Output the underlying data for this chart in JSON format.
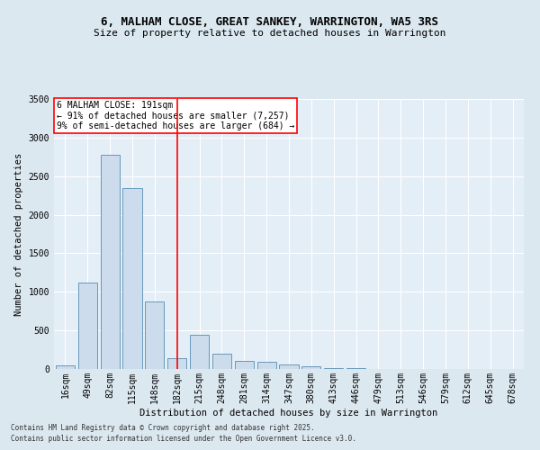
{
  "title_line1": "6, MALHAM CLOSE, GREAT SANKEY, WARRINGTON, WA5 3RS",
  "title_line2": "Size of property relative to detached houses in Warrington",
  "xlabel": "Distribution of detached houses by size in Warrington",
  "ylabel": "Number of detached properties",
  "bar_labels": [
    "16sqm",
    "49sqm",
    "82sqm",
    "115sqm",
    "148sqm",
    "182sqm",
    "215sqm",
    "248sqm",
    "281sqm",
    "314sqm",
    "347sqm",
    "380sqm",
    "413sqm",
    "446sqm",
    "479sqm",
    "513sqm",
    "546sqm",
    "579sqm",
    "612sqm",
    "645sqm",
    "678sqm"
  ],
  "bar_values": [
    50,
    1120,
    2780,
    2340,
    880,
    140,
    445,
    200,
    100,
    90,
    55,
    30,
    15,
    10,
    5,
    2,
    1,
    0,
    0,
    0,
    0
  ],
  "bar_color": "#ccdcec",
  "bar_edge_color": "#6699bb",
  "vline_x": 5,
  "vline_color": "red",
  "annotation_text": "6 MALHAM CLOSE: 191sqm\n← 91% of detached houses are smaller (7,257)\n9% of semi-detached houses are larger (684) →",
  "annotation_box_color": "white",
  "annotation_box_edge": "red",
  "ylim": [
    0,
    3500
  ],
  "yticks": [
    0,
    500,
    1000,
    1500,
    2000,
    2500,
    3000,
    3500
  ],
  "bg_color": "#dce8f0",
  "plot_bg_color": "#e4eef6",
  "grid_color": "#ffffff",
  "footer_line1": "Contains HM Land Registry data © Crown copyright and database right 2025.",
  "footer_line2": "Contains public sector information licensed under the Open Government Licence v3.0.",
  "title_fontsize": 9,
  "subtitle_fontsize": 8,
  "ylabel_fontsize": 7.5,
  "xlabel_fontsize": 7.5,
  "tick_fontsize": 7,
  "annotation_fontsize": 7,
  "footer_fontsize": 5.5
}
